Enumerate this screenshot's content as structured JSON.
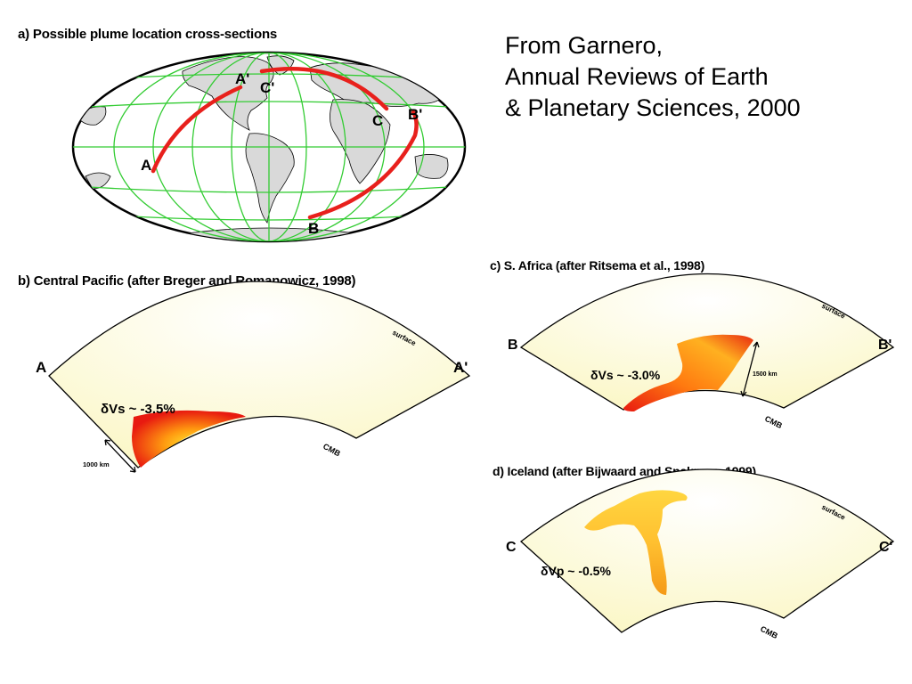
{
  "credit": {
    "line1": "From Garnero,",
    "line2": "Annual Reviews of Earth",
    "line3": "& Planetary Sciences, 2000"
  },
  "panel_a": {
    "title": "a) Possible plume location cross-sections",
    "labels": {
      "A": "A",
      "A_prime": "A'",
      "B": "B",
      "B_prime": "B'",
      "C": "C",
      "C_prime": "C'"
    }
  },
  "panel_b": {
    "title": "b) Central Pacific (after Breger and Romanowicz, 1998)",
    "left_label": "A",
    "right_label": "A'",
    "anomaly": "δVs ~ -3.5%",
    "surface": "surface",
    "cmb": "CMB",
    "scale": "1000 km"
  },
  "panel_c": {
    "title": "c) S. Africa (after Ritsema et al., 1998)",
    "left_label": "B",
    "right_label": "B'",
    "anomaly": "δVs ~ -3.0%",
    "surface": "surface",
    "cmb": "CMB",
    "scale": "1500 km"
  },
  "panel_d": {
    "title": "d) Iceland (after Bijwaard and Spakman, 1999)",
    "left_label": "C",
    "right_label": "C'",
    "anomaly": "δVp ~ -0.5%",
    "surface": "surface",
    "cmb": "CMB"
  },
  "colors": {
    "profile_line": "#e8201c",
    "graticule": "#33cc33",
    "land": "#d9d9d9",
    "section_fill": "#fdfbd9"
  }
}
